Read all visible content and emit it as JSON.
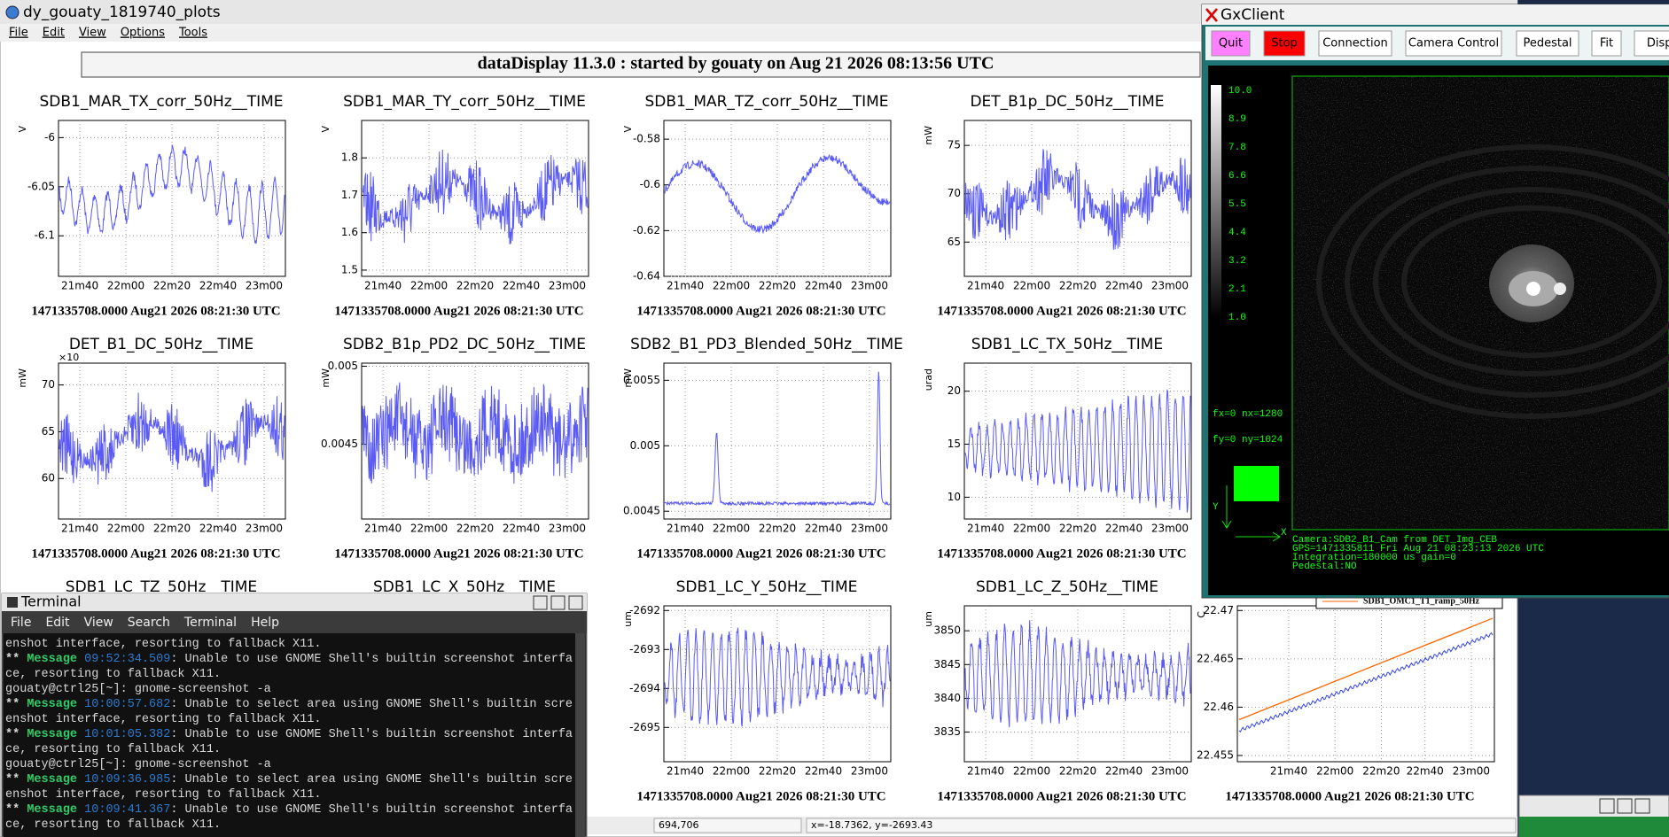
{
  "main_window": {
    "title": "dy_gouaty_1819740_plots",
    "menu": [
      "File",
      "Edit",
      "View",
      "Options",
      "Tools"
    ],
    "banner": "dataDisplay 11.3.0 : started by gouaty on Aug 21 2026 08:13:56 UTC",
    "xticks": [
      "21m40",
      "22m00",
      "22m20",
      "22m40",
      "23m00"
    ],
    "footer": "1471335708.0000 Aug21 2026 08:21:30 UTC",
    "plots": [
      {
        "title": "SDB1_MAR_TX_corr_50Hz__TIME",
        "unit": "V",
        "yticks": [
          "-6",
          "-6.05",
          "-6.1"
        ]
      },
      {
        "title": "SDB1_MAR_TY_corr_50Hz__TIME",
        "unit": "V",
        "yticks": [
          "1.8",
          "1.7",
          "1.6",
          "1.5"
        ]
      },
      {
        "title": "SDB1_MAR_TZ_corr_50Hz__TIME",
        "unit": "V",
        "yticks": [
          "-0.58",
          "-0.6",
          "-0.62",
          "-0.64"
        ]
      },
      {
        "title": "DET_B1p_DC_50Hz__TIME",
        "unit": "mW",
        "yticks": [
          "75",
          "70",
          "65"
        ]
      },
      {
        "title": "DET_B1_DC_50Hz__TIME",
        "unit": "mW",
        "multiplier": "×10",
        "yticks": [
          "70",
          "65",
          "60"
        ]
      },
      {
        "title": "SDB2_B1p_PD2_DC_50Hz__TIME",
        "unit": "mW",
        "yticks": [
          "0.005",
          "0.0045"
        ]
      },
      {
        "title": "SDB2_B1_PD3_Blended_50Hz__TIME",
        "unit": "mW",
        "yticks": [
          "0.0055",
          "0.005",
          "0.0045"
        ]
      },
      {
        "title": "SDB1_LC_TX_50Hz__TIME",
        "unit": "urad",
        "yticks": [
          "20",
          "15",
          "10"
        ]
      },
      {
        "title": "SDB1_LC_Y_50Hz__TIME",
        "unit": "um",
        "yticks": [
          "-2692",
          "-2693",
          "-2694",
          "-2695"
        ]
      },
      {
        "title": "SDB1_LC_Z_50Hz__TIME",
        "unit": "um",
        "yticks": [
          "3850",
          "3845",
          "3840",
          "3835"
        ]
      },
      {
        "unit": "C",
        "legend": "SDB1_OMC1_T1_ramp_50Hz",
        "yticks": [
          "22.47",
          "22.465",
          "22.46",
          "22.455"
        ]
      }
    ],
    "covered_titles": [
      "SDB1_LC_TZ_50Hz__TIME",
      "SDB1_LC_X_50Hz__TIME"
    ],
    "status": [
      "694,706",
      "x=-18.7362, y=-2693.43"
    ]
  },
  "gxclient": {
    "title": "GxClient",
    "buttons": [
      "Quit",
      "Stop",
      "Connection",
      "Camera Control",
      "Pedestal",
      "Fit",
      "Displ"
    ],
    "scale": [
      "10.0",
      "8.9",
      "7.8",
      "6.6",
      "5.5",
      "4.4",
      "3.2",
      "2.1",
      "1.0"
    ],
    "info": [
      "fx=0 nx=1280",
      "fy=0 ny=1024"
    ],
    "axes": [
      "Y",
      "X"
    ],
    "caption": [
      "Camera:SDB2_B1_Cam from DET_Img_CEB",
      "GPS=1471335811 Fri Aug 21 08:23:13 2026  UTC",
      "Integration=180000 us gain=0",
      "Pedestal:NO"
    ]
  },
  "terminal": {
    "title": "Terminal",
    "menu": [
      "File",
      "Edit",
      "View",
      "Search",
      "Terminal",
      "Help"
    ],
    "lines": [
      {
        "text": "enshot interface, resorting to fallback X11."
      },
      {
        "prefix": "**",
        "tag": "Message",
        "time": "09:52:34.509",
        "text": ": Unable to use GNOME Shell's builtin screenshot interfa"
      },
      {
        "text": "ce, resorting to fallback X11."
      },
      {
        "text": "gouaty@ctrl25[~]: gnome-screenshot -a"
      },
      {
        "prefix": "**",
        "tag": "Message",
        "time": "10:00:57.682",
        "text": ": Unable to select area using GNOME Shell's builtin scre"
      },
      {
        "text": "enshot interface, resorting to fallback X11."
      },
      {
        "prefix": "**",
        "tag": "Message",
        "time": "10:01:05.382",
        "text": ": Unable to use GNOME Shell's builtin screenshot interfa"
      },
      {
        "text": "ce, resorting to fallback X11."
      },
      {
        "text": "gouaty@ctrl25[~]: gnome-screenshot -a"
      },
      {
        "prefix": "**",
        "tag": "Message",
        "time": "10:09:36.985",
        "text": ": Unable to select area using GNOME Shell's builtin scre"
      },
      {
        "text": "enshot interface, resorting to fallback X11."
      },
      {
        "prefix": "**",
        "tag": "Message",
        "time": "10:09:41.367",
        "text": ": Unable to use GNOME Shell's builtin screenshot interfa"
      },
      {
        "text": "ce, resorting to fallback X11."
      }
    ]
  }
}
